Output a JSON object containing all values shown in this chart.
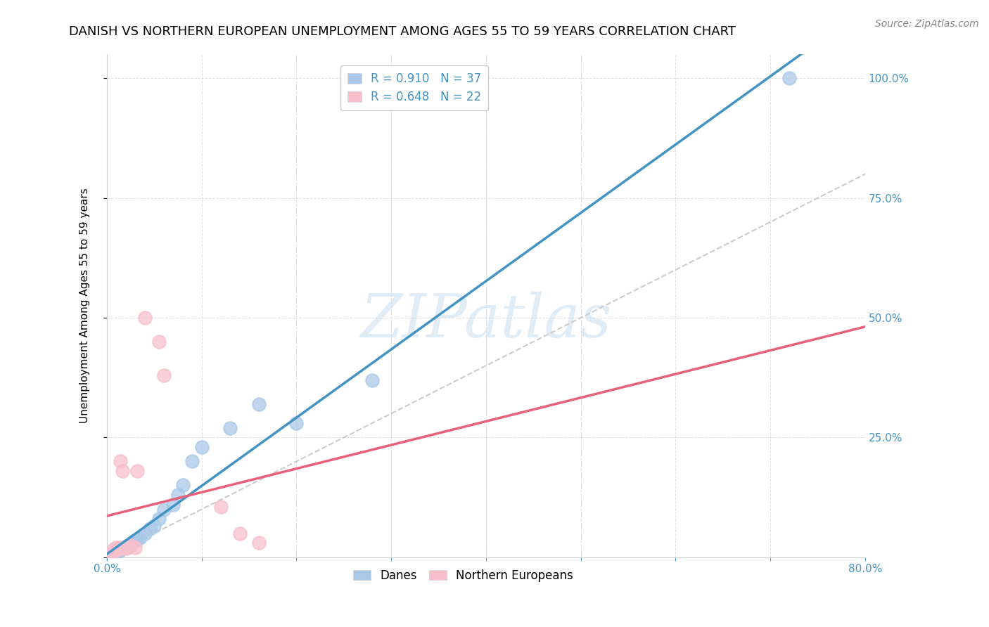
{
  "title": "DANISH VS NORTHERN EUROPEAN UNEMPLOYMENT AMONG AGES 55 TO 59 YEARS CORRELATION CHART",
  "source": "Source: ZipAtlas.com",
  "ylabel": "Unemployment Among Ages 55 to 59 years",
  "xlim": [
    0.0,
    0.8
  ],
  "ylim": [
    0.0,
    1.05
  ],
  "xticks": [
    0.0,
    0.1,
    0.2,
    0.3,
    0.4,
    0.5,
    0.6,
    0.7,
    0.8
  ],
  "xticklabels": [
    "0.0%",
    "",
    "",
    "",
    "",
    "",
    "",
    "",
    "80.0%"
  ],
  "yticks": [
    0.0,
    0.25,
    0.5,
    0.75,
    1.0
  ],
  "yticklabels_right": [
    "",
    "25.0%",
    "50.0%",
    "75.0%",
    "100.0%"
  ],
  "danes_color": "#aac9e8",
  "northern_color": "#f7bfcc",
  "danes_line_color": "#4393c3",
  "northern_line_color": "#e8607a",
  "diagonal_color": "#cccccc",
  "R_danes": 0.91,
  "N_danes": 37,
  "R_northern": 0.648,
  "N_northern": 22,
  "danes_x": [
    0.003,
    0.005,
    0.006,
    0.007,
    0.008,
    0.009,
    0.01,
    0.011,
    0.012,
    0.013,
    0.014,
    0.015,
    0.016,
    0.018,
    0.02,
    0.021,
    0.022,
    0.025,
    0.027,
    0.03,
    0.032,
    0.035,
    0.04,
    0.045,
    0.05,
    0.055,
    0.06,
    0.07,
    0.075,
    0.08,
    0.09,
    0.1,
    0.13,
    0.16,
    0.2,
    0.28,
    0.72
  ],
  "danes_y": [
    0.004,
    0.006,
    0.007,
    0.008,
    0.01,
    0.01,
    0.012,
    0.013,
    0.012,
    0.014,
    0.015,
    0.016,
    0.018,
    0.02,
    0.022,
    0.023,
    0.025,
    0.028,
    0.03,
    0.035,
    0.038,
    0.04,
    0.05,
    0.06,
    0.065,
    0.08,
    0.1,
    0.11,
    0.13,
    0.15,
    0.2,
    0.23,
    0.27,
    0.32,
    0.28,
    0.37,
    1.0
  ],
  "northern_x": [
    0.004,
    0.006,
    0.007,
    0.008,
    0.01,
    0.011,
    0.012,
    0.014,
    0.015,
    0.016,
    0.018,
    0.02,
    0.022,
    0.025,
    0.03,
    0.032,
    0.04,
    0.055,
    0.06,
    0.12,
    0.14,
    0.16
  ],
  "northern_y": [
    0.008,
    0.01,
    0.015,
    0.018,
    0.02,
    0.015,
    0.018,
    0.2,
    0.02,
    0.18,
    0.02,
    0.018,
    0.02,
    0.025,
    0.02,
    0.18,
    0.5,
    0.45,
    0.38,
    0.105,
    0.05,
    0.03
  ],
  "watermark_text": "ZIPatlas",
  "legend_text_color": "#4393c3",
  "legend_rn_color": "#4393c3",
  "title_fontsize": 13,
  "axis_label_fontsize": 11,
  "tick_fontsize": 11,
  "legend_fontsize": 12,
  "source_fontsize": 10
}
